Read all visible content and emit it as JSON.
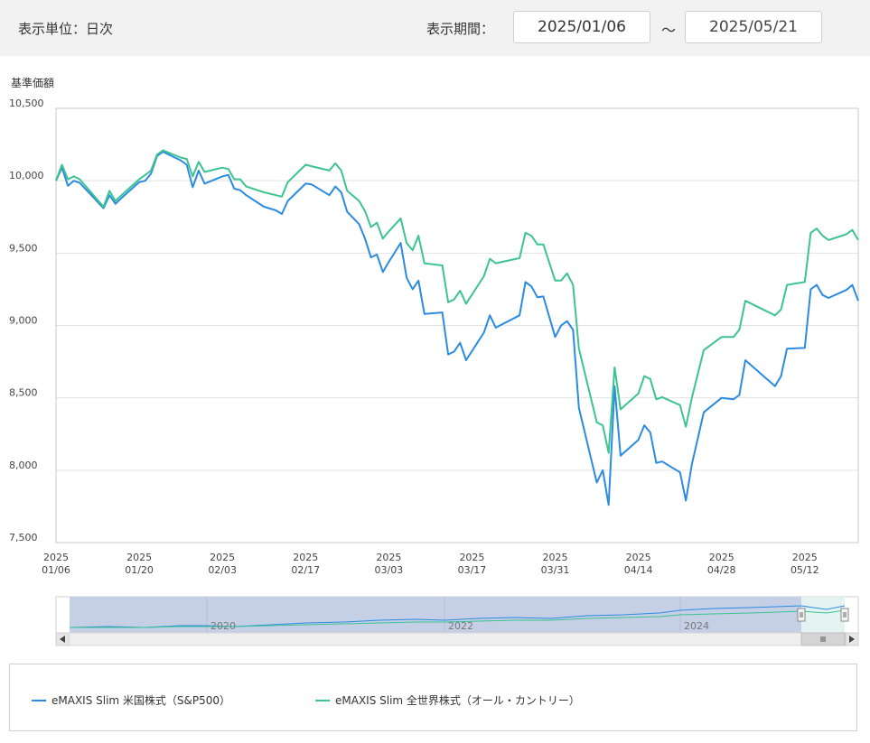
{
  "header": {
    "unit_label": "表示単位：日次",
    "period_label": "表示期間：",
    "start_date": "2025/01/06",
    "separator": "〜",
    "end_date": "2025/05/21"
  },
  "colors": {
    "sp500": "#2b8be0",
    "allcountry": "#3cc48f"
  },
  "chart_data": {
    "type": "line",
    "ylabel": "基準価額",
    "ylim": [
      7500,
      10500
    ],
    "y_ticks": [
      "10,500",
      "10,000",
      "9,500",
      "9,000",
      "8,500",
      "8,000",
      "7,500"
    ],
    "x_ticks": [
      {
        "year": "2025",
        "date": "01/06"
      },
      {
        "year": "2025",
        "date": "01/20"
      },
      {
        "year": "2025",
        "date": "02/03"
      },
      {
        "year": "2025",
        "date": "02/17"
      },
      {
        "year": "2025",
        "date": "03/03"
      },
      {
        "year": "2025",
        "date": "03/17"
      },
      {
        "year": "2025",
        "date": "03/31"
      },
      {
        "year": "2025",
        "date": "04/14"
      },
      {
        "year": "2025",
        "date": "04/28"
      },
      {
        "year": "2025",
        "date": "05/12"
      }
    ],
    "x_range": [
      "2025/01/06",
      "2025/05/21"
    ],
    "grid": true,
    "legend_position": "bottom",
    "series": [
      {
        "name": "eMAXIS Slim 米国株式（S&P500）",
        "points": [
          [
            "2025/01/06",
            10000
          ],
          [
            "2025/01/07",
            10090
          ],
          [
            "2025/01/08",
            9965
          ],
          [
            "2025/01/09",
            10000
          ],
          [
            "2025/01/10",
            9985
          ],
          [
            "2025/01/14",
            9810
          ],
          [
            "2025/01/15",
            9900
          ],
          [
            "2025/01/16",
            9840
          ],
          [
            "2025/01/17",
            9880
          ],
          [
            "2025/01/20",
            9990
          ],
          [
            "2025/01/21",
            10000
          ],
          [
            "2025/01/22",
            10050
          ],
          [
            "2025/01/23",
            10170
          ],
          [
            "2025/01/24",
            10200
          ],
          [
            "2025/01/27",
            10140
          ],
          [
            "2025/01/28",
            10110
          ],
          [
            "2025/01/29",
            9955
          ],
          [
            "2025/01/30",
            10070
          ],
          [
            "2025/01/31",
            9980
          ],
          [
            "2025/02/03",
            10030
          ],
          [
            "2025/02/04",
            10040
          ],
          [
            "2025/02/05",
            9945
          ],
          [
            "2025/02/06",
            9935
          ],
          [
            "2025/02/07",
            9900
          ],
          [
            "2025/02/10",
            9820
          ],
          [
            "2025/02/12",
            9795
          ],
          [
            "2025/02/13",
            9770
          ],
          [
            "2025/02/14",
            9860
          ],
          [
            "2025/02/17",
            9980
          ],
          [
            "2025/02/18",
            9975
          ],
          [
            "2025/02/21",
            9900
          ],
          [
            "2025/02/22",
            9960
          ],
          [
            "2025/02/23",
            9920
          ],
          [
            "2025/02/24",
            9785
          ],
          [
            "2025/02/26",
            9700
          ],
          [
            "2025/02/27",
            9600
          ],
          [
            "2025/02/28",
            9470
          ],
          [
            "2025/03/01",
            9490
          ],
          [
            "2025/03/02",
            9370
          ],
          [
            "2025/03/03",
            9440
          ],
          [
            "2025/03/05",
            9570
          ],
          [
            "2025/03/06",
            9330
          ],
          [
            "2025/03/07",
            9250
          ],
          [
            "2025/03/08",
            9310
          ],
          [
            "2025/03/09",
            9080
          ],
          [
            "2025/03/12",
            9090
          ],
          [
            "2025/03/13",
            8800
          ],
          [
            "2025/03/14",
            8820
          ],
          [
            "2025/03/15",
            8880
          ],
          [
            "2025/03/16",
            8760
          ],
          [
            "2025/03/19",
            8950
          ],
          [
            "2025/03/20",
            9070
          ],
          [
            "2025/03/21",
            8985
          ],
          [
            "2025/03/25",
            9070
          ],
          [
            "2025/03/26",
            9300
          ],
          [
            "2025/03/27",
            9270
          ],
          [
            "2025/03/28",
            9195
          ],
          [
            "2025/03/29",
            9200
          ],
          [
            "2025/03/31",
            8920
          ],
          [
            "2025/04/01",
            9000
          ],
          [
            "2025/04/02",
            9030
          ],
          [
            "2025/04/03",
            8970
          ],
          [
            "2025/04/04",
            8430
          ],
          [
            "2025/04/07",
            7915
          ],
          [
            "2025/04/08",
            8000
          ],
          [
            "2025/04/09",
            7760
          ],
          [
            "2025/04/10",
            8580
          ],
          [
            "2025/04/11",
            8100
          ],
          [
            "2025/04/14",
            8210
          ],
          [
            "2025/04/15",
            8310
          ],
          [
            "2025/04/16",
            8260
          ],
          [
            "2025/04/17",
            8050
          ],
          [
            "2025/04/18",
            8060
          ],
          [
            "2025/04/21",
            7985
          ],
          [
            "2025/04/22",
            7790
          ],
          [
            "2025/04/23",
            8040
          ],
          [
            "2025/04/25",
            8400
          ],
          [
            "2025/04/28",
            8500
          ],
          [
            "2025/04/30",
            8490
          ],
          [
            "2025/05/01",
            8520
          ],
          [
            "2025/05/02",
            8760
          ],
          [
            "2025/05/07",
            8580
          ],
          [
            "2025/05/08",
            8650
          ],
          [
            "2025/05/09",
            8840
          ],
          [
            "2025/05/12",
            8845
          ],
          [
            "2025/05/13",
            9250
          ],
          [
            "2025/05/14",
            9280
          ],
          [
            "2025/05/15",
            9210
          ],
          [
            "2025/05/16",
            9190
          ],
          [
            "2025/05/19",
            9245
          ],
          [
            "2025/05/20",
            9280
          ],
          [
            "2025/05/21",
            9170
          ]
        ]
      },
      {
        "name": "eMAXIS Slim 全世界株式（オール・カントリー）",
        "points": [
          [
            "2025/01/06",
            10000
          ],
          [
            "2025/01/07",
            10110
          ],
          [
            "2025/01/08",
            10010
          ],
          [
            "2025/01/09",
            10030
          ],
          [
            "2025/01/10",
            10010
          ],
          [
            "2025/01/14",
            9820
          ],
          [
            "2025/01/15",
            9930
          ],
          [
            "2025/01/16",
            9860
          ],
          [
            "2025/01/17",
            9900
          ],
          [
            "2025/01/20",
            10010
          ],
          [
            "2025/01/21",
            10040
          ],
          [
            "2025/01/22",
            10070
          ],
          [
            "2025/01/23",
            10180
          ],
          [
            "2025/01/24",
            10210
          ],
          [
            "2025/01/27",
            10160
          ],
          [
            "2025/01/28",
            10150
          ],
          [
            "2025/01/29",
            10030
          ],
          [
            "2025/01/30",
            10130
          ],
          [
            "2025/01/31",
            10060
          ],
          [
            "2025/02/03",
            10090
          ],
          [
            "2025/02/04",
            10080
          ],
          [
            "2025/02/05",
            10010
          ],
          [
            "2025/02/06",
            10010
          ],
          [
            "2025/02/07",
            9960
          ],
          [
            "2025/02/10",
            9920
          ],
          [
            "2025/02/12",
            9900
          ],
          [
            "2025/02/13",
            9890
          ],
          [
            "2025/02/14",
            9990
          ],
          [
            "2025/02/17",
            10110
          ],
          [
            "2025/02/18",
            10100
          ],
          [
            "2025/02/21",
            10070
          ],
          [
            "2025/02/22",
            10120
          ],
          [
            "2025/02/23",
            10070
          ],
          [
            "2025/02/24",
            9930
          ],
          [
            "2025/02/26",
            9860
          ],
          [
            "2025/02/27",
            9790
          ],
          [
            "2025/02/28",
            9680
          ],
          [
            "2025/03/01",
            9710
          ],
          [
            "2025/03/02",
            9600
          ],
          [
            "2025/03/03",
            9650
          ],
          [
            "2025/03/05",
            9740
          ],
          [
            "2025/03/06",
            9570
          ],
          [
            "2025/03/07",
            9520
          ],
          [
            "2025/03/08",
            9620
          ],
          [
            "2025/03/09",
            9430
          ],
          [
            "2025/03/12",
            9415
          ],
          [
            "2025/03/13",
            9160
          ],
          [
            "2025/03/14",
            9180
          ],
          [
            "2025/03/15",
            9240
          ],
          [
            "2025/03/16",
            9150
          ],
          [
            "2025/03/19",
            9340
          ],
          [
            "2025/03/20",
            9460
          ],
          [
            "2025/03/21",
            9430
          ],
          [
            "2025/03/25",
            9465
          ],
          [
            "2025/03/26",
            9640
          ],
          [
            "2025/03/27",
            9620
          ],
          [
            "2025/03/28",
            9560
          ],
          [
            "2025/03/29",
            9560
          ],
          [
            "2025/03/31",
            9310
          ],
          [
            "2025/04/01",
            9310
          ],
          [
            "2025/04/02",
            9360
          ],
          [
            "2025/04/03",
            9280
          ],
          [
            "2025/04/04",
            8840
          ],
          [
            "2025/04/07",
            8330
          ],
          [
            "2025/04/08",
            8310
          ],
          [
            "2025/04/09",
            8120
          ],
          [
            "2025/04/10",
            8710
          ],
          [
            "2025/04/11",
            8420
          ],
          [
            "2025/04/14",
            8530
          ],
          [
            "2025/04/15",
            8650
          ],
          [
            "2025/04/16",
            8630
          ],
          [
            "2025/04/17",
            8490
          ],
          [
            "2025/04/18",
            8505
          ],
          [
            "2025/04/21",
            8450
          ],
          [
            "2025/04/22",
            8300
          ],
          [
            "2025/04/23",
            8500
          ],
          [
            "2025/04/25",
            8830
          ],
          [
            "2025/04/28",
            8920
          ],
          [
            "2025/04/30",
            8920
          ],
          [
            "2025/05/01",
            8970
          ],
          [
            "2025/05/02",
            9170
          ],
          [
            "2025/05/07",
            9070
          ],
          [
            "2025/05/08",
            9110
          ],
          [
            "2025/05/09",
            9280
          ],
          [
            "2025/05/12",
            9300
          ],
          [
            "2025/05/13",
            9640
          ],
          [
            "2025/05/14",
            9670
          ],
          [
            "2025/05/15",
            9620
          ],
          [
            "2025/05/16",
            9590
          ],
          [
            "2025/05/19",
            9630
          ],
          [
            "2025/05/20",
            9660
          ],
          [
            "2025/05/21",
            9590
          ]
        ]
      }
    ]
  },
  "navigator": {
    "year_labels": [
      "2020",
      "2022",
      "2024"
    ],
    "scroll_left_icon": "arrow-left-icon",
    "scroll_right_icon": "arrow-right-icon",
    "grip_icon": "grip-icon"
  },
  "legend": {
    "items": [
      {
        "label": "eMAXIS Slim 米国株式（S&P500）"
      },
      {
        "label": "eMAXIS Slim 全世界株式（オール・カントリー）"
      }
    ]
  }
}
